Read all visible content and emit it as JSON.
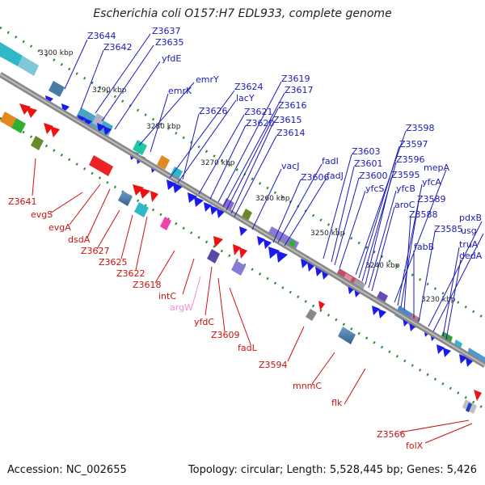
{
  "title": "Escherichia coli O157:H7 EDL933, complete genome",
  "footer": {
    "accession": "Accession: NC_002655",
    "stats": "Topology: circular; Length: 5,528,445 bp; Genes: 5,426"
  },
  "tick_labels": [
    "3300 kbp",
    "3290 kbp",
    "3280 kbp",
    "3270 kbp",
    "3260 kbp",
    "3250 kbp",
    "3240 kbp",
    "3230 kbp"
  ],
  "top_labels": [
    "Z3644",
    "Z3637",
    "Z3642",
    "Z3635",
    "yfdE",
    "emrY",
    "emrK",
    "Z3624",
    "lacY",
    "Z3626",
    "Z3621",
    "Z3620",
    "Z3619",
    "Z3617",
    "Z3616",
    "Z3615",
    "Z3614",
    "vacJ",
    "fadI",
    "fadJ",
    "Z3606",
    "Z3603",
    "Z3601",
    "Z3600",
    "yfcS",
    "Z3598",
    "Z3597",
    "Z3596",
    "Z3595",
    "yfcB",
    "aroC",
    "mepA",
    "yfcA",
    "Z3589",
    "Z3588",
    "fabB",
    "Z3585",
    "pdxB",
    "usg",
    "truA",
    "dedA"
  ],
  "bottom_labels": [
    "Z3641",
    "evgS",
    "evgA",
    "dsdA",
    "Z3627",
    "Z3625",
    "Z3622",
    "Z3618",
    "intC",
    "argW",
    "yfdC",
    "Z3609",
    "fadL",
    "Z3594",
    "mnmC",
    "flk",
    "Z3566",
    "folX"
  ]
}
